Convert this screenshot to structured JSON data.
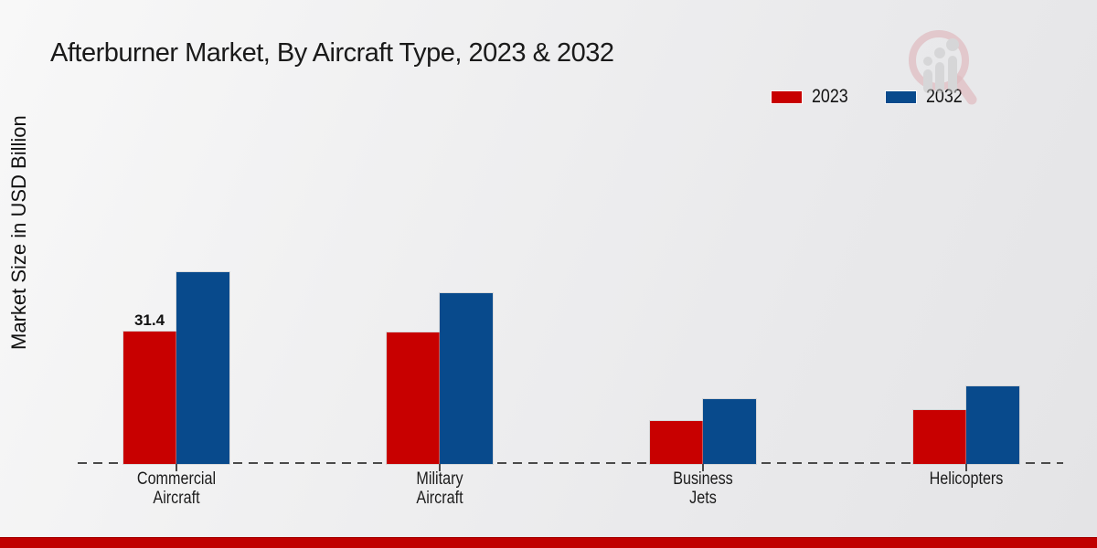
{
  "page": {
    "title": "Afterburner Market, By Aircraft Type, 2023 & 2032",
    "y_axis_label": "Market Size in USD Billion"
  },
  "chart_data": {
    "type": "bar",
    "title": "Afterburner Market, By Aircraft Type, 2023 & 2032",
    "ylabel": "Market Size in USD Billion",
    "xlabel": "",
    "categories": [
      "Commercial Aircraft",
      "Military Aircraft",
      "Business Jets",
      "Helicopters"
    ],
    "series": [
      {
        "name": "2023",
        "color": "#c80000",
        "values": [
          31.4,
          31.1,
          10.2,
          12.8
        ],
        "value_labels": [
          "31.4",
          null,
          null,
          null
        ]
      },
      {
        "name": "2032",
        "color": "#084a8c",
        "values": [
          45.5,
          40.5,
          15.4,
          18.4
        ],
        "value_labels": [
          null,
          null,
          null,
          null
        ]
      }
    ],
    "ylim": [
      0,
      50
    ],
    "grid": false,
    "axis_ticks_visible": false,
    "baseline_style": "dashed",
    "legend_position": "top-right"
  },
  "branding": {
    "watermark_icon": "chart-magnifier-watermark",
    "watermark_ring_color": "#d89aa0",
    "watermark_bar_color": "#c9c9c9",
    "footer_bar_color": "#c00000"
  }
}
